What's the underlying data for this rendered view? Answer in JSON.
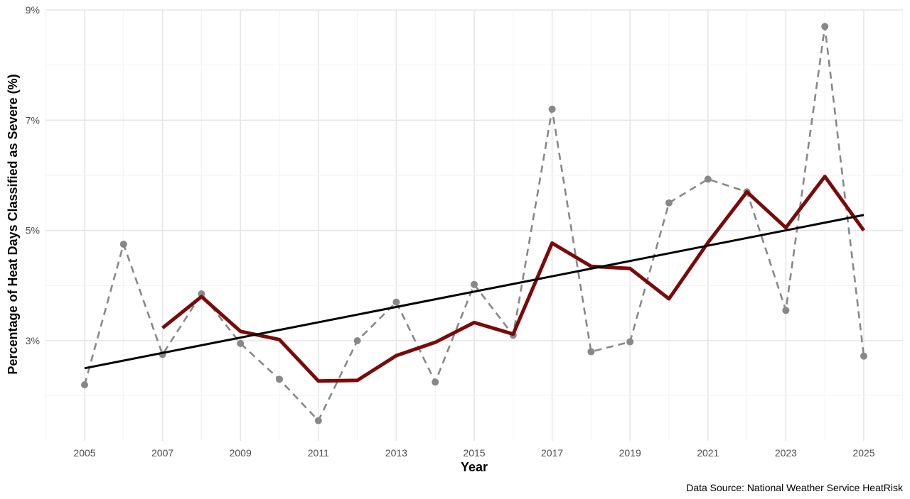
{
  "chart_data": {
    "type": "line",
    "xlabel": "Year",
    "ylabel": "Percentage of Heat Days Classified as Severe (%)",
    "caption": "Data Source: National Weather Service HeatRisk",
    "x": [
      2005,
      2006,
      2007,
      2008,
      2009,
      2010,
      2011,
      2012,
      2013,
      2014,
      2015,
      2016,
      2017,
      2018,
      2019,
      2020,
      2021,
      2022,
      2023,
      2024,
      2025
    ],
    "xlim": [
      2004,
      2026
    ],
    "ylim": [
      1.2,
      9.0
    ],
    "x_ticks": [
      "2005",
      "2007",
      "2009",
      "2011",
      "2013",
      "2015",
      "2017",
      "2019",
      "2021",
      "2023",
      "2025"
    ],
    "y_ticks": [
      "3%",
      "5%",
      "7%",
      "9%"
    ],
    "grid": true,
    "series": [
      {
        "style": "dashed-points",
        "color": "#888888",
        "values": [
          2.2,
          4.75,
          2.75,
          3.85,
          2.95,
          2.3,
          1.55,
          3.0,
          3.7,
          2.25,
          4.02,
          3.1,
          7.2,
          2.8,
          2.98,
          5.5,
          5.93,
          5.7,
          3.55,
          8.7,
          2.72
        ]
      },
      {
        "style": "solid-thick",
        "color": "#7a0a0a",
        "x": [
          2007,
          2008,
          2009,
          2010,
          2011,
          2012,
          2013,
          2014,
          2015,
          2016,
          2017,
          2018,
          2019,
          2020,
          2021,
          2022,
          2023,
          2024,
          2025
        ],
        "values": [
          3.23,
          3.8,
          3.17,
          3.02,
          2.27,
          2.28,
          2.73,
          2.97,
          3.33,
          3.12,
          4.77,
          4.35,
          4.31,
          3.76,
          4.78,
          5.7,
          5.05,
          5.98,
          5.0
        ]
      },
      {
        "style": "trend-line",
        "color": "#000000",
        "x": [
          2005,
          2025
        ],
        "values": [
          2.5,
          5.28
        ]
      }
    ]
  }
}
